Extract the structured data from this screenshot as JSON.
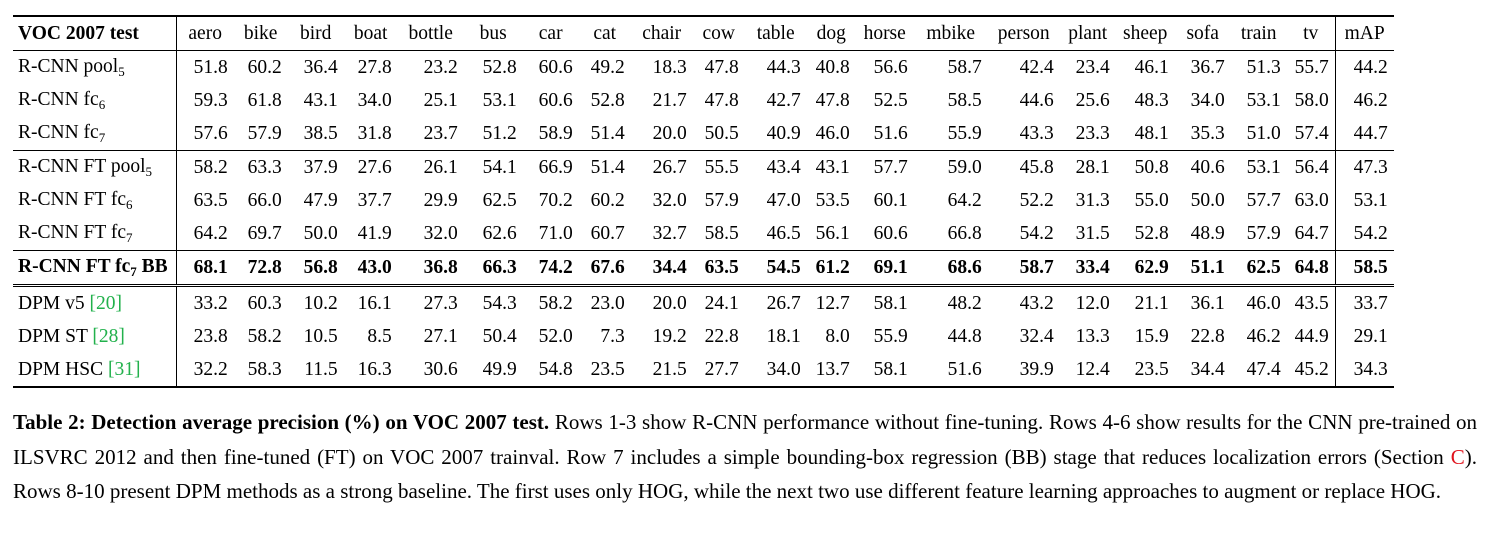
{
  "table": {
    "header_label": "VOC 2007 test",
    "columns": [
      "aero",
      "bike",
      "bird",
      "boat",
      "bottle",
      "bus",
      "car",
      "cat",
      "chair",
      "cow",
      "table",
      "dog",
      "horse",
      "mbike",
      "person",
      "plant",
      "sheep",
      "sofa",
      "train",
      "tv",
      "mAP"
    ],
    "rows": [
      {
        "base": "R-CNN pool",
        "sub": "5",
        "values": [
          "51.8",
          "60.2",
          "36.4",
          "27.8",
          "23.2",
          "52.8",
          "60.6",
          "49.2",
          "18.3",
          "47.8",
          "44.3",
          "40.8",
          "56.6",
          "58.7",
          "42.4",
          "23.4",
          "46.1",
          "36.7",
          "51.3",
          "55.7",
          "44.2"
        ]
      },
      {
        "base": "R-CNN fc",
        "sub": "6",
        "values": [
          "59.3",
          "61.8",
          "43.1",
          "34.0",
          "25.1",
          "53.1",
          "60.6",
          "52.8",
          "21.7",
          "47.8",
          "42.7",
          "47.8",
          "52.5",
          "58.5",
          "44.6",
          "25.6",
          "48.3",
          "34.0",
          "53.1",
          "58.0",
          "46.2"
        ]
      },
      {
        "base": "R-CNN fc",
        "sub": "7",
        "values": [
          "57.6",
          "57.9",
          "38.5",
          "31.8",
          "23.7",
          "51.2",
          "58.9",
          "51.4",
          "20.0",
          "50.5",
          "40.9",
          "46.0",
          "51.6",
          "55.9",
          "43.3",
          "23.3",
          "48.1",
          "35.3",
          "51.0",
          "57.4",
          "44.7"
        ]
      },
      {
        "base": "R-CNN FT pool",
        "sub": "5",
        "values": [
          "58.2",
          "63.3",
          "37.9",
          "27.6",
          "26.1",
          "54.1",
          "66.9",
          "51.4",
          "26.7",
          "55.5",
          "43.4",
          "43.1",
          "57.7",
          "59.0",
          "45.8",
          "28.1",
          "50.8",
          "40.6",
          "53.1",
          "56.4",
          "47.3"
        ]
      },
      {
        "base": "R-CNN FT fc",
        "sub": "6",
        "values": [
          "63.5",
          "66.0",
          "47.9",
          "37.7",
          "29.9",
          "62.5",
          "70.2",
          "60.2",
          "32.0",
          "57.9",
          "47.0",
          "53.5",
          "60.1",
          "64.2",
          "52.2",
          "31.3",
          "55.0",
          "50.0",
          "57.7",
          "63.0",
          "53.1"
        ]
      },
      {
        "base": "R-CNN FT fc",
        "sub": "7",
        "values": [
          "64.2",
          "69.7",
          "50.0",
          "41.9",
          "32.0",
          "62.6",
          "71.0",
          "60.7",
          "32.7",
          "58.5",
          "46.5",
          "56.1",
          "60.6",
          "66.8",
          "54.2",
          "31.5",
          "52.8",
          "48.9",
          "57.9",
          "64.7",
          "54.2"
        ]
      },
      {
        "base": "R-CNN FT fc",
        "sub": "7",
        "suffix": " BB",
        "values": [
          "68.1",
          "72.8",
          "56.8",
          "43.0",
          "36.8",
          "66.3",
          "74.2",
          "67.6",
          "34.4",
          "63.5",
          "54.5",
          "61.2",
          "69.1",
          "68.6",
          "58.7",
          "33.4",
          "62.9",
          "51.1",
          "62.5",
          "64.8",
          "58.5"
        ]
      },
      {
        "base": "DPM v5 ",
        "ref": "[20]",
        "values": [
          "33.2",
          "60.3",
          "10.2",
          "16.1",
          "27.3",
          "54.3",
          "58.2",
          "23.0",
          "20.0",
          "24.1",
          "26.7",
          "12.7",
          "58.1",
          "48.2",
          "43.2",
          "12.0",
          "21.1",
          "36.1",
          "46.0",
          "43.5",
          "33.7"
        ]
      },
      {
        "base": "DPM ST ",
        "ref": "[28]",
        "values": [
          "23.8",
          "58.2",
          "10.5",
          "8.5",
          "27.1",
          "50.4",
          "52.0",
          "7.3",
          "19.2",
          "22.8",
          "18.1",
          "8.0",
          "55.9",
          "44.8",
          "32.4",
          "13.3",
          "15.9",
          "22.8",
          "46.2",
          "44.9",
          "29.1"
        ]
      },
      {
        "base": "DPM HSC ",
        "ref": "[31]",
        "values": [
          "32.2",
          "58.3",
          "11.5",
          "16.3",
          "30.6",
          "49.9",
          "54.8",
          "23.5",
          "21.5",
          "27.7",
          "34.0",
          "13.7",
          "58.1",
          "51.6",
          "39.9",
          "12.4",
          "23.5",
          "34.4",
          "47.4",
          "45.2",
          "34.3"
        ]
      }
    ]
  },
  "caption": {
    "title": "Table 2: Detection average precision (%) on VOC 2007 test.",
    "body_1": " Rows 1-3 show R-CNN performance without fine-tuning. Rows 4-6 show results for the CNN pre-trained on ILSVRC 2012 and then fine-tuned (FT) on VOC 2007 trainval. Row 7 includes a simple bounding-box regression (BB) stage that reduces localization errors (Section ",
    "section_ref": "C",
    "body_2": "). Rows 8-10 present DPM methods as a strong baseline.  The first uses only HOG, while the next two use different feature learning approaches to augment or replace HOG."
  },
  "colors": {
    "citation": "#22b14c",
    "section_link": "#e0141e"
  }
}
